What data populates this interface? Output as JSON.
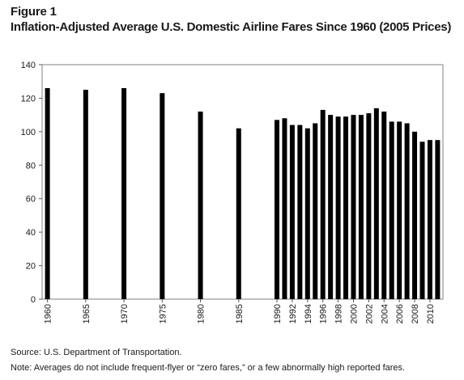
{
  "figure_label": "Figure 1",
  "title": "Inflation-Adjusted Average U.S. Domestic Airline Fares Since 1960 (2005 Prices)",
  "source": "Source: U.S. Department of Transportation.",
  "note": "Note: Averages do not include frequent-flyer or “zero fares,” or a few abnormally high reported fares.",
  "chart_data": {
    "type": "bar",
    "title": "Inflation-Adjusted Average U.S. Domestic Airline Fares Since 1960 (2005 Prices)",
    "xlabel": "",
    "ylabel": "",
    "ylim": [
      0,
      140
    ],
    "yticks": [
      0,
      20,
      40,
      60,
      80,
      100,
      120,
      140
    ],
    "grid": false,
    "x": [
      1960,
      1965,
      1970,
      1975,
      1980,
      1985,
      1990,
      1991,
      1992,
      1993,
      1994,
      1995,
      1996,
      1997,
      1998,
      1999,
      2000,
      2001,
      2002,
      2003,
      2004,
      2005,
      2006,
      2007,
      2008,
      2009,
      2010,
      2011
    ],
    "values": [
      126,
      125,
      126,
      123,
      112,
      102,
      107,
      108,
      104,
      104,
      102,
      105,
      113,
      110,
      109,
      109,
      110,
      110,
      111,
      114,
      112,
      106,
      106,
      105,
      100,
      94,
      95,
      95
    ],
    "xtick_labels": [
      "1960",
      "1965",
      "1970",
      "1975",
      "1980",
      "1985",
      "1990",
      "1992",
      "1994",
      "1996",
      "1998",
      "2000",
      "2002",
      "2004",
      "2006",
      "2008",
      "2010"
    ],
    "bar_color": "#000000"
  }
}
